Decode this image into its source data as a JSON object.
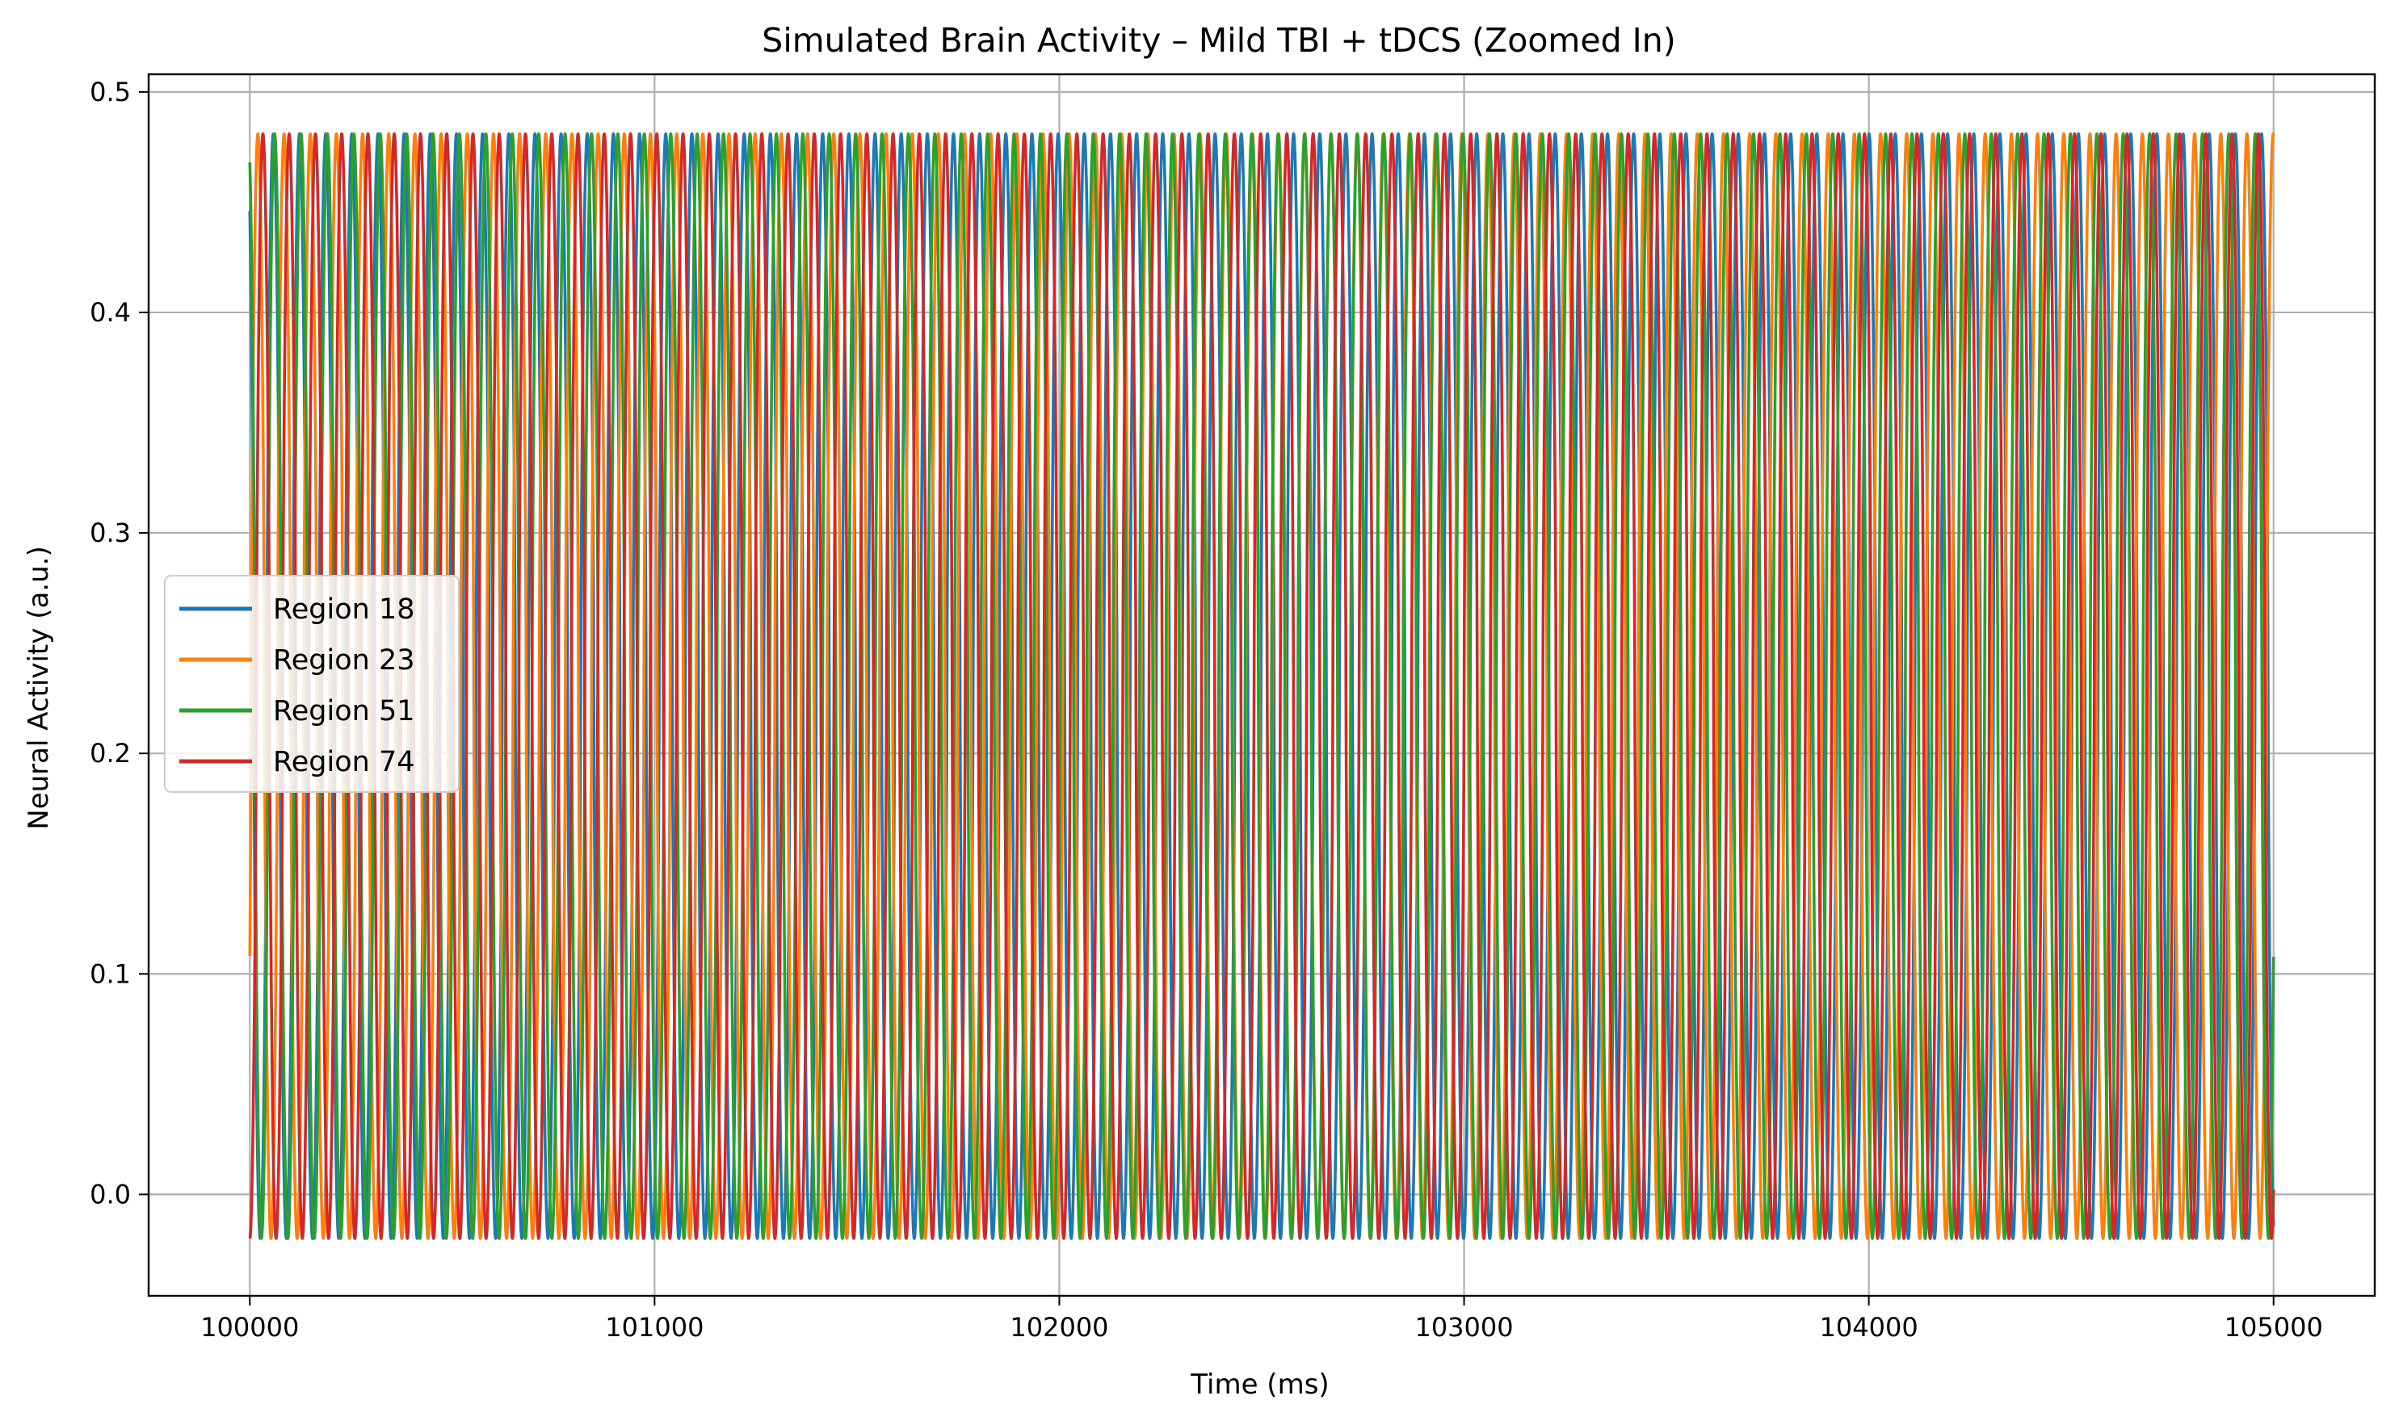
{
  "chart_data": {
    "type": "line",
    "title": "Simulated Brain Activity – Mild TBI + tDCS (Zoomed In)",
    "xlabel": "Time (ms)",
    "ylabel": "Neural Activity (a.u.)",
    "xlim": [
      99750,
      105250
    ],
    "ylim": [
      -0.046,
      0.508
    ],
    "xticks": [
      100000,
      101000,
      102000,
      103000,
      104000,
      105000
    ],
    "xtick_labels": [
      "100000",
      "101000",
      "102000",
      "103000",
      "104000",
      "105000"
    ],
    "yticks": [
      0.0,
      0.1,
      0.2,
      0.3,
      0.4,
      0.5
    ],
    "ytick_labels": [
      "0.0",
      "0.1",
      "0.2",
      "0.3",
      "0.4",
      "0.5"
    ],
    "grid": true,
    "legend_position": "center-left",
    "oscillation": {
      "x_start": 100000,
      "x_end": 105000,
      "peak": 0.481,
      "trough": -0.02
    },
    "series": [
      {
        "name": "Region 18",
        "color": "#1f77b4",
        "period_ms": 64.9,
        "start_value": 0.446,
        "end_value": -0.014
      },
      {
        "name": "Region 23",
        "color": "#ff7f0e",
        "period_ms": 64.3,
        "start_value": 0.108,
        "end_value": 0.48
      },
      {
        "name": "Region 51",
        "color": "#2ca02c",
        "period_ms": 65.2,
        "start_value": 0.468,
        "end_value": 0.107
      },
      {
        "name": "Region 74",
        "color": "#d62728",
        "period_ms": 64.6,
        "start_value": -0.02,
        "end_value": 0.002
      }
    ]
  }
}
